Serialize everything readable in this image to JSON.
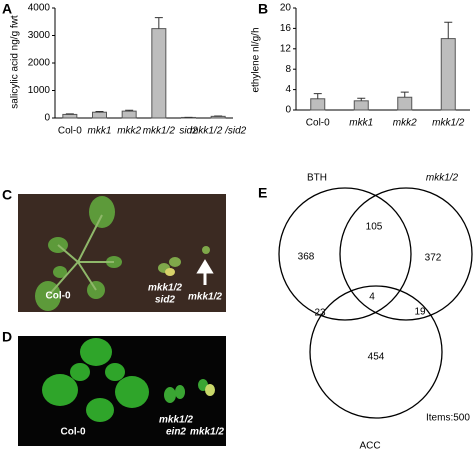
{
  "chart_data": [
    {
      "type": "bar",
      "panel": "A",
      "ylabel": "salicylic acid ng/g fwt",
      "categories": [
        "Col-0",
        "mkk1",
        "mkk2",
        "mkk1/2",
        "sid2",
        "mkk1/2 /sid2"
      ],
      "values": [
        130,
        210,
        250,
        3250,
        20,
        60
      ],
      "errors": [
        20,
        25,
        30,
        400,
        5,
        15
      ],
      "color": "#bdbdbd",
      "ylim": [
        0,
        4000
      ],
      "yticks": [
        0,
        1000,
        2000,
        3000,
        4000
      ]
    },
    {
      "type": "bar",
      "panel": "B",
      "ylabel": "ethylene nl/g/h",
      "categories": [
        "Col-0",
        "mkk1",
        "mkk2",
        "mkk1/2"
      ],
      "values": [
        2.2,
        1.8,
        2.5,
        14
      ],
      "errors": [
        1,
        0.5,
        1,
        3.2
      ],
      "color": "#bdbdbd",
      "ylim": [
        0,
        20
      ],
      "yticks": [
        0,
        4,
        8,
        12,
        16,
        20
      ]
    }
  ],
  "photo_c": {
    "panel": "C",
    "labels": [
      "Col-0",
      "mkk1/2",
      "sid2",
      "mkk1/2"
    ]
  },
  "photo_d": {
    "panel": "D",
    "labels": [
      "Col-0",
      "mkk1/2",
      "ein2",
      "mkk1/2"
    ]
  },
  "venn": {
    "panel": "E",
    "sets": [
      "BTH",
      "mkk1/2",
      "ACC"
    ],
    "regions": [
      368,
      105,
      372,
      23,
      4,
      19,
      454
    ],
    "total_label": "Items:500"
  }
}
